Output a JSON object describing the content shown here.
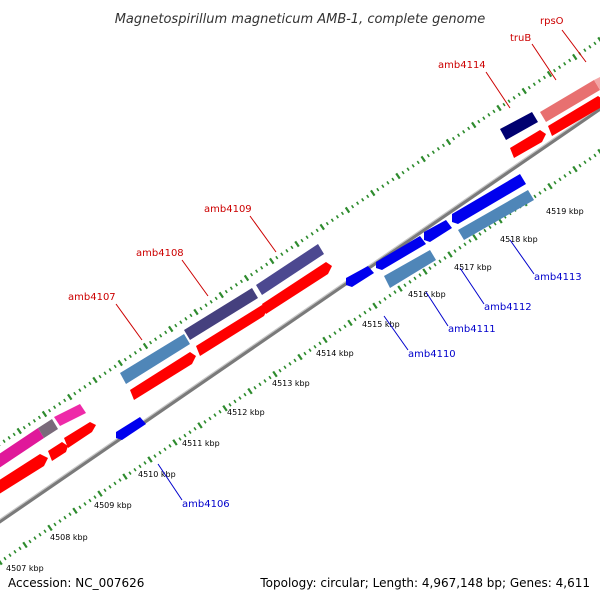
{
  "title": "Magnetospirillum magneticum AMB-1, complete genome",
  "accession": "Accession: NC_007626",
  "topology": "Topology: circular; Length: 4,967,148 bp; Genes: 4,611",
  "colors": {
    "backbone": "#8f8f8f",
    "tick": "#2e8b2e",
    "label_red": "#cc0000",
    "label_blue": "#0000cc"
  },
  "kbp_labels": [
    "4507 kbp",
    "4508 kbp",
    "4509 kbp",
    "4510 kbp",
    "4511 kbp",
    "4512 kbp",
    "4513 kbp",
    "4514 kbp",
    "4515 kbp",
    "4516 kbp",
    "4517 kbp",
    "4518 kbp",
    "4519 kbp"
  ],
  "gene_labels": {
    "top": [
      "amb4107",
      "amb4108",
      "amb4109",
      "amb4114",
      "truB",
      "rpsO"
    ],
    "bottom": [
      "amb4106",
      "amb4110",
      "amb4111",
      "amb4112",
      "amb4113"
    ]
  }
}
